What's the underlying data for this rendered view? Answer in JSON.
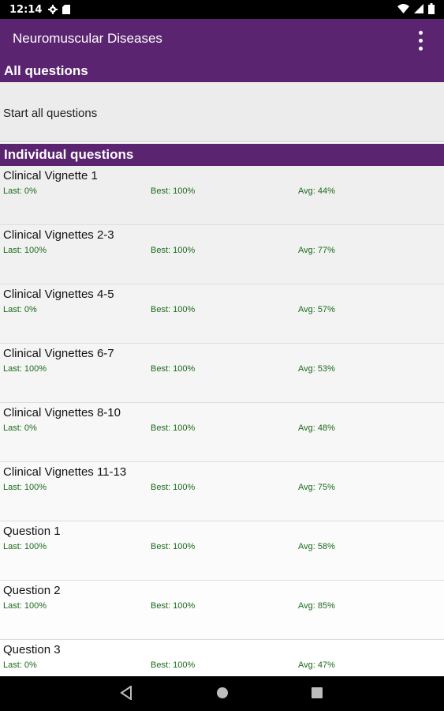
{
  "status_bar": {
    "time": "12:14"
  },
  "app_bar": {
    "title": "Neuromuscular Diseases"
  },
  "all_section": {
    "header": "All questions",
    "start_label": "Start all questions"
  },
  "individual_section": {
    "header": "Individual questions"
  },
  "questions": [
    {
      "title": "Clinical Vignette 1",
      "last": "Last: 0%",
      "best": "Best: 100%",
      "avg": "Avg: 44%",
      "bg": "#efefef"
    },
    {
      "title": "Clinical Vignettes 2-3",
      "last": "Last: 100%",
      "best": "Best: 100%",
      "avg": "Avg: 77%",
      "bg": "#f1f1f1"
    },
    {
      "title": "Clinical Vignettes 4-5",
      "last": "Last: 0%",
      "best": "Best: 100%",
      "avg": "Avg: 57%",
      "bg": "#f3f3f3"
    },
    {
      "title": "Clinical Vignettes 6-7",
      "last": "Last: 100%",
      "best": "Best: 100%",
      "avg": "Avg: 53%",
      "bg": "#f5f5f5"
    },
    {
      "title": "Clinical Vignettes 8-10",
      "last": "Last: 0%",
      "best": "Best: 100%",
      "avg": "Avg: 48%",
      "bg": "#f7f7f7"
    },
    {
      "title": "Clinical Vignettes 11-13",
      "last": "Last: 100%",
      "best": "Best: 100%",
      "avg": "Avg: 75%",
      "bg": "#f9f9f9"
    },
    {
      "title": "Question 1",
      "last": "Last: 100%",
      "best": "Best: 100%",
      "avg": "Avg: 58%",
      "bg": "#fbfbfb"
    },
    {
      "title": "Question 2",
      "last": "Last: 100%",
      "best": "Best: 100%",
      "avg": "Avg: 85%",
      "bg": "#fdfdfd"
    },
    {
      "title": "Question 3",
      "last": "Last: 0%",
      "best": "Best: 100%",
      "avg": "Avg: 47%",
      "bg": "#ffffff"
    }
  ],
  "icons": {
    "status": [
      "settings-icon",
      "sd-card-icon",
      "wifi-icon",
      "signal-icon",
      "battery-icon"
    ],
    "app_bar": [
      "overflow-menu-icon"
    ],
    "nav": [
      "back-icon",
      "home-icon",
      "recents-icon"
    ]
  },
  "colors": {
    "primary": "#5a2470",
    "stat_green": "#1b6b1b"
  }
}
